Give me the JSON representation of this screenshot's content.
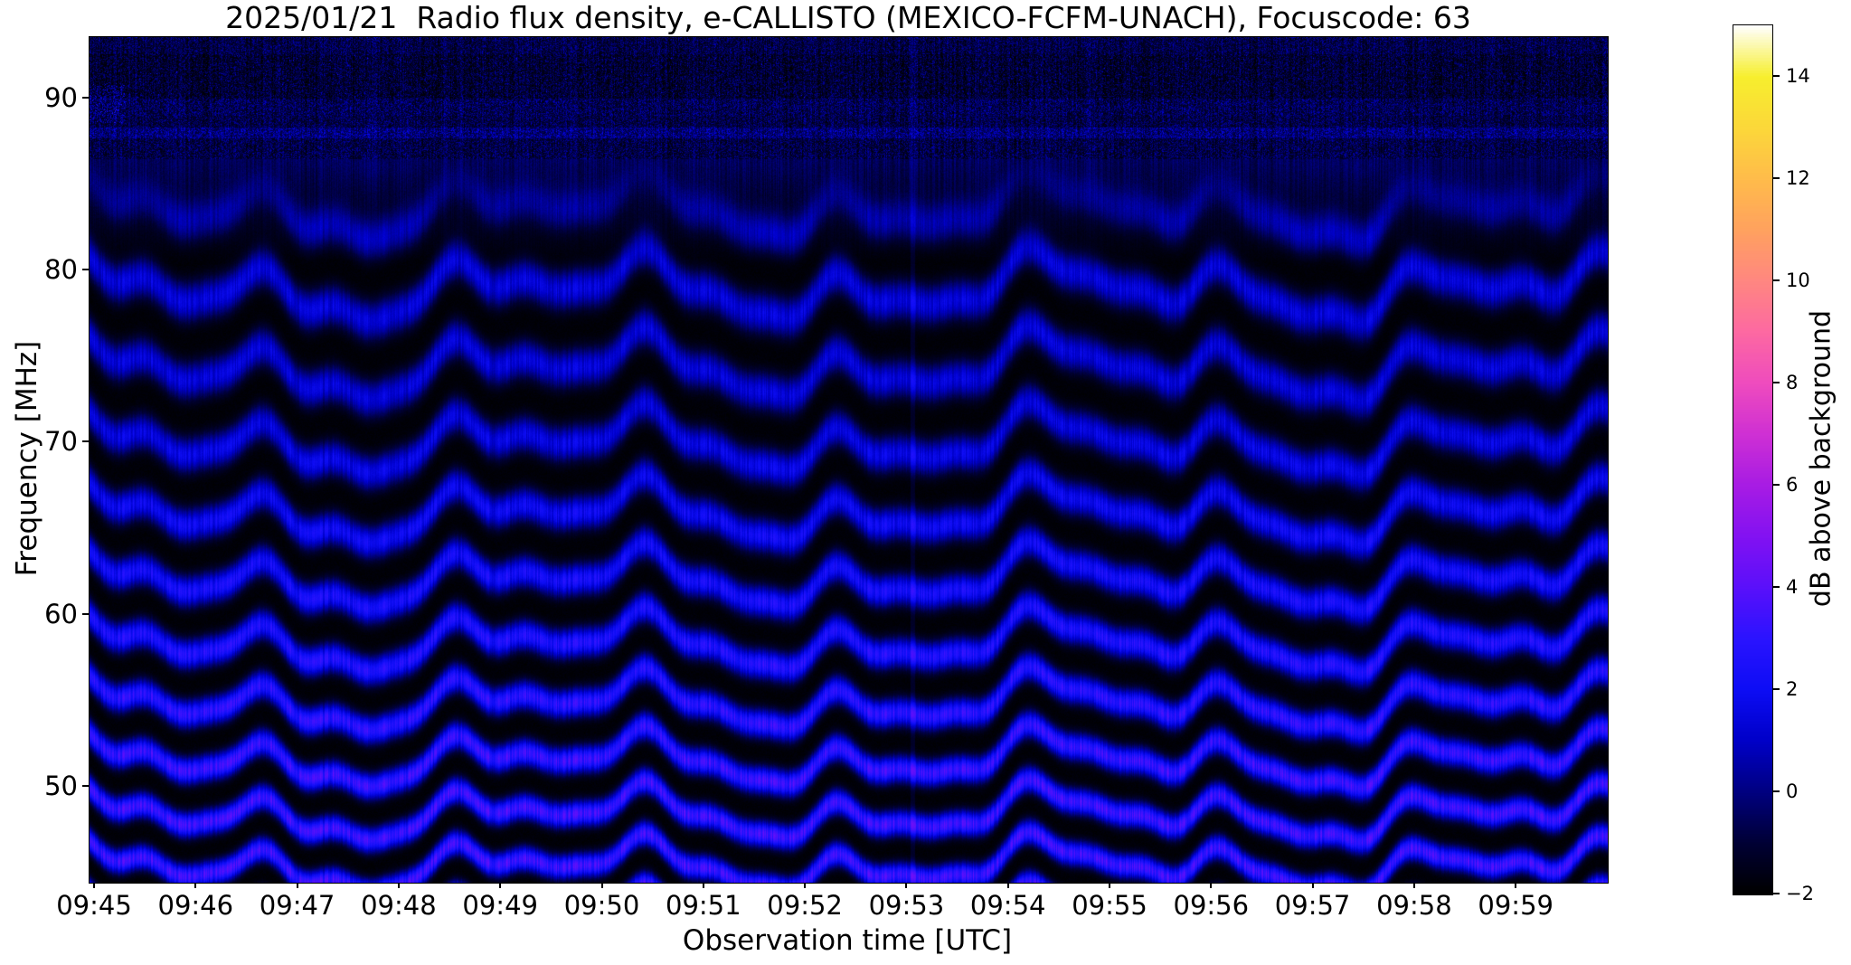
{
  "figure": {
    "title": "2025/01/21  Radio flux density, e-CALLISTO (MEXICO-FCFM-UNACH), Focuscode: 63"
  },
  "chart_data": {
    "type": "heatmap",
    "subtype": "radio-spectrogram",
    "title": "2025/01/21  Radio flux density, e-CALLISTO (MEXICO-FCFM-UNACH), Focuscode: 63",
    "xlabel": "Observation time [UTC]",
    "ylabel": "Frequency [MHz]",
    "x_tick_labels": [
      "09:45",
      "09:46",
      "09:47",
      "09:48",
      "09:49",
      "09:50",
      "09:51",
      "09:52",
      "09:53",
      "09:54",
      "09:55",
      "09:56",
      "09:57",
      "09:58",
      "09:59"
    ],
    "x_tick_minutes": [
      0,
      1,
      2,
      3,
      4,
      5,
      6,
      7,
      8,
      9,
      10,
      11,
      12,
      13,
      14
    ],
    "xlim_minutes_from_0945": [
      -0.053,
      14.9
    ],
    "y_tick_labels": [
      "90",
      "80",
      "70",
      "60",
      "50"
    ],
    "y_tick_values": [
      90,
      80,
      70,
      60,
      50
    ],
    "ylim_mhz": [
      44.4,
      93.6
    ],
    "grid": false,
    "legend": "none",
    "colorbar": {
      "label": "dB above background",
      "tick_labels": [
        "14",
        "12",
        "10",
        "8",
        "6",
        "4",
        "2",
        "0",
        "−2"
      ],
      "tick_values": [
        14,
        12,
        10,
        8,
        6,
        4,
        2,
        0,
        -2
      ],
      "range_db": [
        -2,
        15
      ],
      "orientation": "vertical-right"
    },
    "colormap_stops": [
      [
        -2,
        "#000000"
      ],
      [
        -1,
        "#000035"
      ],
      [
        0,
        "#000080"
      ],
      [
        1,
        "#0000c8"
      ],
      [
        2,
        "#0d0df5"
      ],
      [
        3,
        "#2b14ff"
      ],
      [
        4,
        "#5a10fb"
      ],
      [
        5,
        "#8312f2"
      ],
      [
        6,
        "#a81ce4"
      ],
      [
        7,
        "#cf30d4"
      ],
      [
        8,
        "#ef4cbe"
      ],
      [
        9,
        "#fd69a2"
      ],
      [
        10,
        "#ff8781"
      ],
      [
        11,
        "#ffa25f"
      ],
      [
        12,
        "#ffbc4b"
      ],
      [
        13,
        "#fcd83a"
      ],
      [
        14,
        "#f7ef2e"
      ],
      [
        15,
        "#ffffff"
      ]
    ],
    "content_description": "Dynamic spectrum dominated by quasi-horizontal interference fringes: alternating bright-blue and near-black wavy bands (~1.9-2.1 MHz vertical spacing) covering ~44-86 MHz, all bands undulating coherently in time with sharp crests near 09:45.7, 09:46.4, 09:49.3, 09:50.6, 09:52.3, 09:53.5, 09:54.7, 09:56.3 and 09:58.4 UTC; fringe contrast strongest below ~70 MHz (peaks ~3-4 dB, violet-tinged cores near the band bottoms) and fading above ~80 MHz. Above ~86.5 MHz the image is speckled receiver noise: a darker striated band ~90-92.6 MHz, a slightly brighter speckle row ~89-90 MHz, a faint bright horizontal noisy line near ~88 MHz, bright blobs at the left edge (~09:45, 89-91 MHz) and a faint brighter vertical streak near 09:53.",
    "render_params": {
      "fringe_spacing_mhz_at_44": 1.85,
      "fringe_spacing_slope_per_mhz": 0.015,
      "fringe_top_mhz": 86.5,
      "peak_db_low_freq": 3.3,
      "peak_db_high_freq": 1.35,
      "trough_db": -1.85,
      "wave_components_mhz": [
        {
          "amplitude": 0.52,
          "period_min": 1.9,
          "phase_min": 0.28
        },
        {
          "amplitude": 0.26,
          "period_min": 0.95,
          "phase_min": -0.08
        },
        {
          "amplitude": 0.45,
          "period_min": 4.8,
          "phase_min": 1.2
        },
        {
          "amplitude": 0.15,
          "period_min": 0.62,
          "phase_min": 0.0
        }
      ],
      "noise_band_dark_mhz": [
        90.0,
        92.6
      ],
      "noise_band_bright_row_mhz": [
        89.0,
        90.0
      ],
      "bright_line_mhz": [
        87.7,
        88.35
      ],
      "left_edge_blobs_mhz": [
        88.6,
        90.8
      ],
      "vertical_streak_minute": 8.05,
      "seed": 42
    }
  }
}
